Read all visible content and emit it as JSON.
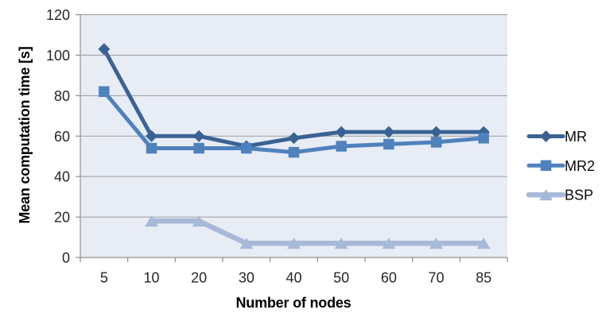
{
  "window": {
    "background": "#ffffff"
  },
  "chart_data": {
    "type": "line",
    "title": "",
    "categories": [
      "5",
      "10",
      "20",
      "30",
      "40",
      "50",
      "60",
      "70",
      "85"
    ],
    "series": [
      {
        "name": "MR",
        "marker": "diamond",
        "color": "#3a6394",
        "line_width": 5,
        "values": [
          103,
          60,
          60,
          55,
          59,
          62,
          62,
          62,
          62
        ]
      },
      {
        "name": "MR2",
        "marker": "square",
        "color": "#4f81bd",
        "line_width": 5,
        "values": [
          82,
          54,
          54,
          54,
          52,
          55,
          56,
          57,
          59
        ]
      },
      {
        "name": "BSP",
        "marker": "triangle",
        "color": "#a7b9d8",
        "line_width": 6.5,
        "values": [
          null,
          18,
          18,
          7,
          7,
          7,
          7,
          7,
          7
        ]
      }
    ],
    "xlabel": "Number of nodes",
    "ylabel": "Mean computation time [s]",
    "ylim": [
      0,
      120
    ],
    "ytick_step": 20,
    "yticks": [
      0,
      20,
      40,
      60,
      80,
      100,
      120
    ],
    "grid": true,
    "legend_position": "right",
    "plot_background": "#e8ecf5",
    "grid_color": "#9b9b9b",
    "axis_color": "#8f8f8f",
    "tick_label_color": "#262626"
  }
}
